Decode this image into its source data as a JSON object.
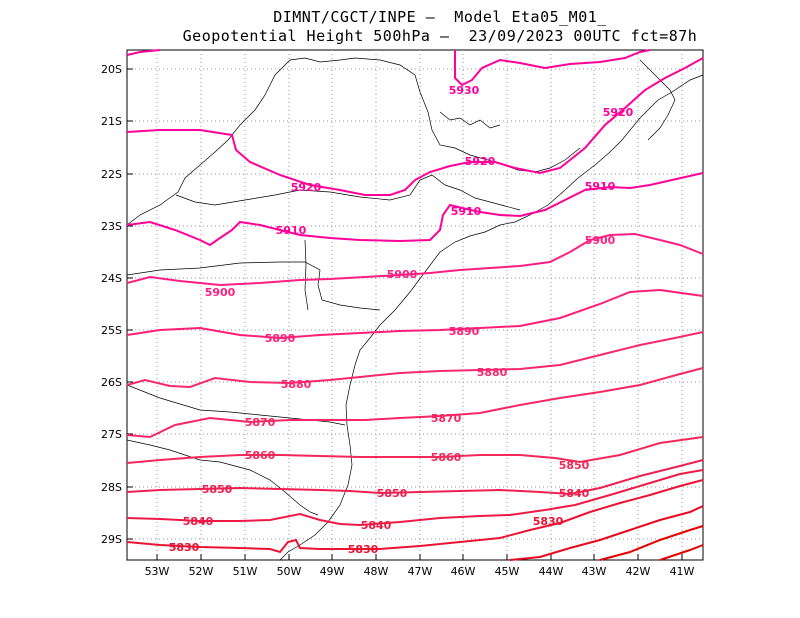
{
  "header": {
    "line1": "DIMNT/CGCT/INPE –  Model Eta05_M01_",
    "line2": "Geopotential Height 500hPa –  23/09/2023 00UTC fct=87h"
  },
  "map": {
    "lon_range": [
      -53.7,
      -40.5
    ],
    "lat_range": [
      -29.4,
      -19.8
    ],
    "lat_ticks": [
      "20S",
      "21S",
      "22S",
      "23S",
      "24S",
      "25S",
      "26S",
      "27S",
      "28S",
      "29S"
    ],
    "lon_ticks": [
      "53W",
      "52W",
      "51W",
      "50W",
      "49W",
      "48W",
      "47W",
      "46W",
      "45W",
      "44W",
      "43W",
      "42W",
      "41W"
    ],
    "colors": {
      "high": "#ff0099",
      "mid": "#f0145a",
      "low": "#e60000",
      "grid": "#999999",
      "coast": "#000000"
    }
  },
  "contour_labels": [
    "5930",
    "5920",
    "5920",
    "5920",
    "5910",
    "5910",
    "5910",
    "5900",
    "5900",
    "5900",
    "5890",
    "5890",
    "5880",
    "5880",
    "5870",
    "5870",
    "5860",
    "5860",
    "5850",
    "5850",
    "5850",
    "5840",
    "5840",
    "5840",
    "5830",
    "5830",
    "5830"
  ]
}
